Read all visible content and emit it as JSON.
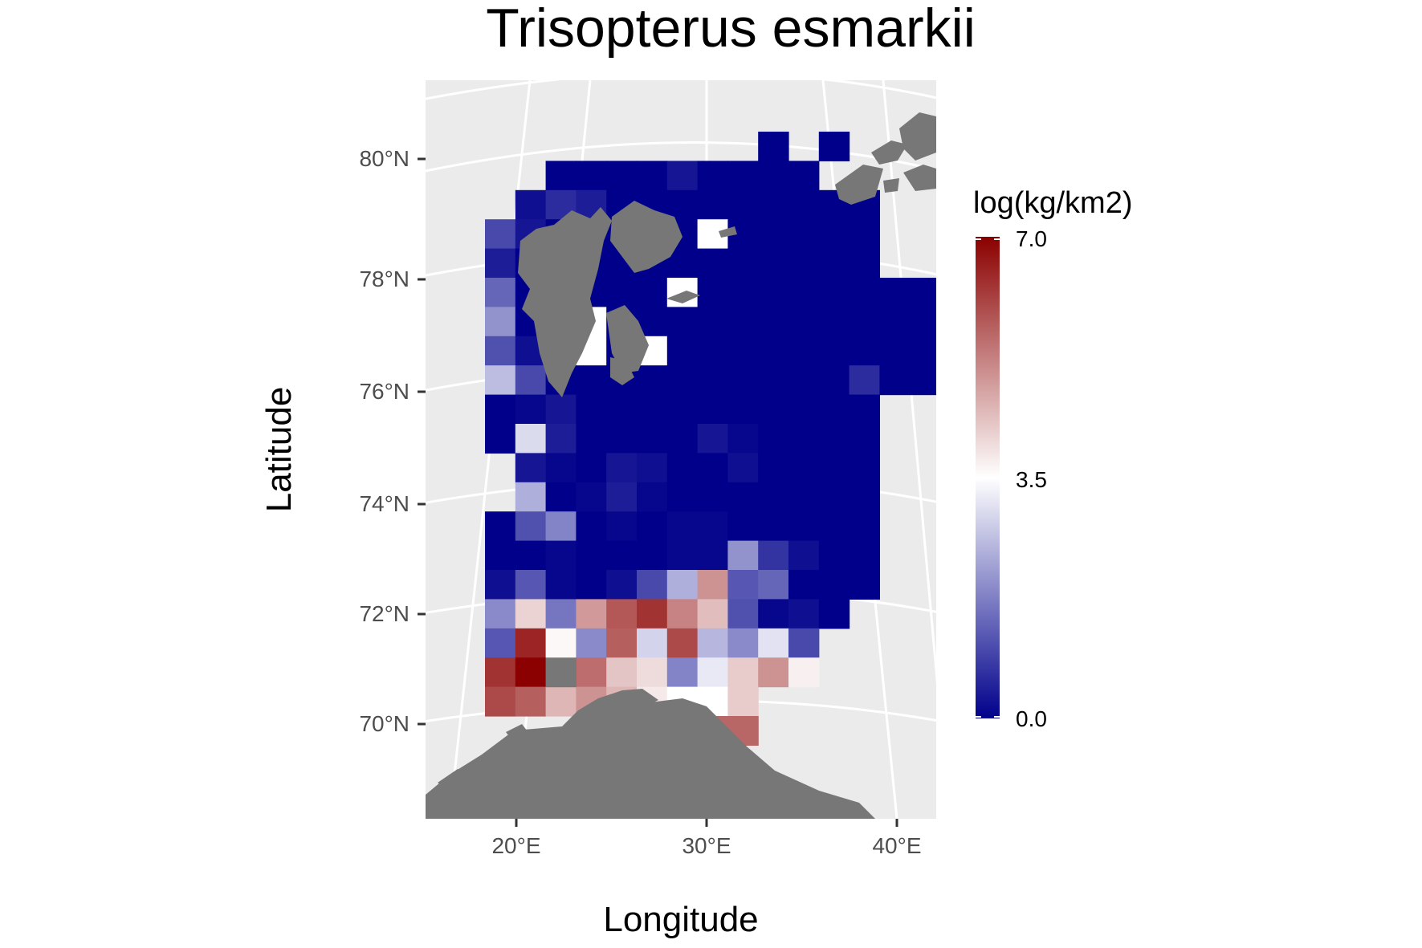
{
  "title": "Trisopterus esmarkii",
  "x_axis_title": "Longitude",
  "y_axis_title": "Latitude",
  "legend": {
    "title": "log(kg/km2)",
    "labels": [
      "7.0",
      "3.5",
      "0.0"
    ]
  },
  "colors": {
    "panel_background": "#ebebeb",
    "graticule": "#ffffff",
    "land": "#777777",
    "low": "#00008b",
    "mid": "#ffffff",
    "high": "#8b0000"
  },
  "chart_data": {
    "type": "heatmap",
    "description_units": "log(kg/km2)",
    "x_ticks": [
      "20°E",
      "30°E",
      "40°E"
    ],
    "y_ticks": [
      "80°N",
      "78°N",
      "76°N",
      "74°N",
      "72°N",
      "70°N"
    ],
    "value_range": [
      0,
      7
    ],
    "cell_col_labels_start": 0,
    "rows_north_to_south": [
      [
        null,
        null,
        null,
        null,
        null,
        null,
        null,
        null,
        null,
        0.0,
        null,
        0.0,
        null,
        null,
        null,
        null
      ],
      [
        null,
        null,
        0.0,
        0.0,
        0.0,
        0.0,
        0.3,
        0.0,
        0.0,
        0.0,
        0.0,
        null,
        null,
        null,
        null,
        null
      ],
      [
        null,
        0.2,
        0.6,
        0.4,
        0.0,
        0.0,
        0.0,
        0.0,
        0.0,
        0.0,
        0.0,
        0.0,
        0.0,
        null,
        null,
        null
      ],
      [
        1.0,
        0.3,
        0.0,
        0.0,
        0.0,
        0.0,
        0.0,
        3.5,
        0.0,
        0.0,
        0.0,
        0.0,
        0.0,
        null,
        null,
        null
      ],
      [
        0.4,
        0.0,
        0.0,
        0.0,
        0.0,
        0.0,
        0.0,
        0.0,
        0.0,
        0.0,
        0.0,
        0.0,
        0.0,
        null,
        null,
        null
      ],
      [
        1.4,
        0.0,
        0.0,
        0.0,
        0.0,
        0.0,
        3.5,
        0.0,
        0.0,
        0.0,
        0.0,
        0.0,
        0.0,
        0.0,
        0.0,
        0.0
      ],
      [
        2.0,
        0.0,
        0.0,
        3.5,
        0.0,
        0.0,
        0.0,
        0.0,
        0.0,
        0.0,
        0.0,
        0.0,
        0.0,
        0.0,
        0.0,
        0.0
      ],
      [
        1.1,
        0.2,
        0.0,
        3.5,
        0.0,
        3.5,
        0.0,
        0.0,
        0.0,
        0.0,
        0.0,
        0.0,
        0.0,
        0.0,
        0.0,
        0.0
      ],
      [
        2.6,
        1.0,
        0.0,
        0.0,
        0.0,
        0.0,
        0.0,
        0.0,
        0.0,
        0.0,
        0.0,
        0.0,
        0.6,
        0.0,
        0.0,
        0.0
      ],
      [
        0.0,
        0.1,
        0.3,
        0.0,
        0.0,
        0.0,
        0.0,
        0.0,
        0.0,
        0.0,
        0.0,
        0.0,
        0.0,
        null,
        null,
        null
      ],
      [
        0.0,
        3.0,
        0.4,
        0.0,
        0.0,
        0.0,
        0.0,
        0.3,
        0.1,
        0.0,
        0.0,
        0.0,
        0.0,
        null,
        null,
        null
      ],
      [
        null,
        0.3,
        0.1,
        0.0,
        0.3,
        0.2,
        0.0,
        0.0,
        0.2,
        0.0,
        0.0,
        0.0,
        0.0,
        null,
        null,
        null
      ],
      [
        null,
        2.4,
        0.0,
        0.1,
        0.4,
        0.1,
        0.0,
        0.0,
        0.0,
        0.0,
        0.0,
        0.0,
        0.0,
        null,
        null,
        null
      ],
      [
        0.0,
        1.1,
        1.8,
        0.0,
        0.1,
        0.0,
        0.1,
        0.1,
        0.0,
        0.0,
        0.0,
        0.0,
        0.0,
        null,
        null,
        null
      ],
      [
        0.0,
        0.0,
        0.1,
        0.0,
        0.0,
        0.0,
        0.1,
        0.1,
        2.0,
        0.7,
        0.2,
        0.0,
        0.0,
        null,
        null,
        null
      ],
      [
        0.2,
        1.2,
        0.1,
        0.0,
        0.2,
        1.0,
        2.4,
        5.0,
        1.2,
        1.4,
        0.0,
        0.0,
        0.0,
        null,
        null,
        null
      ],
      [
        1.9,
        4.1,
        1.6,
        4.9,
        5.8,
        6.3,
        5.2,
        4.4,
        1.1,
        0.1,
        0.2,
        0.0,
        null,
        null,
        null,
        null
      ],
      [
        1.2,
        6.5,
        3.6,
        1.9,
        5.7,
        2.9,
        6.0,
        2.5,
        1.9,
        3.1,
        1.0,
        null,
        null,
        null,
        null,
        null
      ],
      [
        6.3,
        7.0,
        null,
        5.5,
        4.3,
        4.0,
        1.8,
        3.2,
        4.2,
        5.0,
        3.7,
        null,
        null,
        null,
        null,
        null
      ],
      [
        6.0,
        5.7,
        4.5,
        5.0,
        4.5,
        3.8,
        3.5,
        3.5,
        4.2,
        null,
        null,
        null,
        null,
        null,
        null,
        null
      ],
      [
        null,
        null,
        null,
        null,
        null,
        null,
        null,
        5.6,
        5.6,
        null,
        null,
        null,
        null,
        null,
        null,
        null
      ]
    ]
  }
}
